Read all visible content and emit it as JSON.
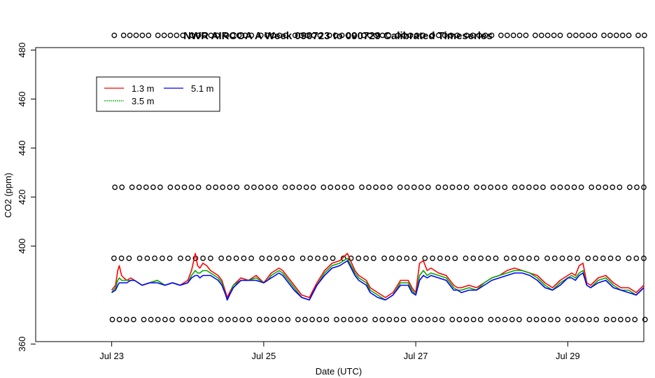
{
  "chart_data": {
    "type": "line",
    "title": "NWR AIRCOA A  Week 090723 to 090729  Calibrated Timeseries",
    "xlabel": "Date (UTC)",
    "ylabel": "CO2 (ppm)",
    "x_unit": "days from Jul 23 00:00 UTC",
    "xlim": [
      -1.0,
      7.0
    ],
    "ylim": [
      361,
      481
    ],
    "x_ticks": [
      {
        "value": 0,
        "label": "Jul 23"
      },
      {
        "value": 2,
        "label": "Jul 25"
      },
      {
        "value": 4,
        "label": "Jul 27"
      },
      {
        "value": 6,
        "label": "Jul 29"
      }
    ],
    "y_ticks": [
      {
        "value": 360,
        "label": "360"
      },
      {
        "value": 400,
        "label": "400"
      },
      {
        "value": 420,
        "label": "420"
      },
      {
        "value": 440,
        "label": "440"
      },
      {
        "value": 460,
        "label": "460"
      },
      {
        "value": 480,
        "label": "480"
      }
    ],
    "grid": false,
    "legend_position": "top-left",
    "legend": [
      {
        "label": "1.3 m",
        "color": "#ff0000"
      },
      {
        "label": "3.5 m",
        "color": "#00aa00"
      },
      {
        "label": "5.1 m",
        "color": "#0000ff"
      }
    ],
    "series": [
      {
        "name": "1.3 m",
        "color": "#ff0000",
        "x": [
          0,
          0.05,
          0.08,
          0.1,
          0.13,
          0.16,
          0.2,
          0.25,
          0.3,
          0.4,
          0.5,
          0.6,
          0.7,
          0.8,
          0.9,
          1.0,
          1.05,
          1.1,
          1.13,
          1.16,
          1.2,
          1.25,
          1.3,
          1.35,
          1.4,
          1.45,
          1.5,
          1.52,
          1.55,
          1.6,
          1.7,
          1.8,
          1.9,
          2.0,
          2.05,
          2.1,
          2.15,
          2.2,
          2.25,
          2.3,
          2.4,
          2.5,
          2.6,
          2.65,
          2.7,
          2.8,
          2.9,
          3.0,
          3.1,
          3.2,
          3.25,
          3.3,
          3.35,
          3.4,
          3.5,
          3.6,
          3.7,
          3.8,
          3.9,
          3.95,
          4.0,
          4.05,
          4.1,
          4.15,
          4.2,
          4.3,
          4.4,
          4.5,
          4.55,
          4.6,
          4.7,
          4.8,
          4.9,
          5.0,
          5.1,
          5.2,
          5.3,
          5.4,
          5.5,
          5.6,
          5.7,
          5.8,
          5.9,
          6.0,
          6.05,
          6.1,
          6.15,
          6.2,
          6.25,
          6.3,
          6.4,
          6.5,
          6.6,
          6.7,
          6.8,
          6.9,
          7.0
        ],
        "y": [
          382,
          384,
          390,
          392,
          388,
          387,
          386,
          387,
          386,
          384,
          385,
          386,
          384,
          385,
          384,
          386,
          390,
          397,
          392,
          391,
          393,
          392,
          390,
          389,
          388,
          386,
          381,
          379,
          381,
          384,
          387,
          386,
          388,
          385,
          387,
          389,
          390,
          391,
          390,
          388,
          384,
          380,
          379,
          382,
          385,
          390,
          393,
          394,
          397,
          390,
          388,
          387,
          386,
          383,
          381,
          379,
          381,
          386,
          386,
          383,
          381,
          393,
          394,
          390,
          391,
          389,
          388,
          384,
          383,
          383,
          384,
          383,
          385,
          387,
          388,
          390,
          391,
          390,
          389,
          388,
          385,
          383,
          386,
          388,
          389,
          388,
          392,
          393,
          385,
          384,
          387,
          388,
          385,
          383,
          383,
          381,
          384
        ]
      },
      {
        "name": "3.5 m",
        "color": "#00aa00",
        "x": [
          0,
          0.05,
          0.08,
          0.1,
          0.13,
          0.16,
          0.2,
          0.25,
          0.3,
          0.4,
          0.5,
          0.6,
          0.7,
          0.8,
          0.9,
          1.0,
          1.05,
          1.1,
          1.13,
          1.16,
          1.2,
          1.25,
          1.3,
          1.35,
          1.4,
          1.45,
          1.5,
          1.52,
          1.55,
          1.6,
          1.7,
          1.8,
          1.9,
          2.0,
          2.05,
          2.1,
          2.15,
          2.2,
          2.25,
          2.3,
          2.4,
          2.5,
          2.6,
          2.65,
          2.7,
          2.8,
          2.9,
          3.0,
          3.1,
          3.2,
          3.25,
          3.3,
          3.35,
          3.4,
          3.5,
          3.6,
          3.7,
          3.8,
          3.9,
          3.95,
          4.0,
          4.05,
          4.1,
          4.15,
          4.2,
          4.3,
          4.4,
          4.5,
          4.55,
          4.6,
          4.7,
          4.8,
          4.9,
          5.0,
          5.1,
          5.2,
          5.3,
          5.4,
          5.5,
          5.6,
          5.7,
          5.8,
          5.9,
          6.0,
          6.05,
          6.1,
          6.15,
          6.2,
          6.25,
          6.3,
          6.4,
          6.5,
          6.6,
          6.7,
          6.8,
          6.9,
          7.0
        ],
        "y": [
          381,
          383,
          386,
          387,
          386,
          386,
          386,
          386,
          386,
          384,
          385,
          386,
          384,
          385,
          384,
          385,
          388,
          390,
          389,
          389,
          390,
          390,
          389,
          388,
          387,
          385,
          380,
          378,
          380,
          384,
          386,
          386,
          387,
          385,
          386,
          388,
          389,
          390,
          389,
          387,
          383,
          379,
          378,
          381,
          384,
          389,
          392,
          393,
          395,
          389,
          387,
          386,
          385,
          382,
          380,
          378,
          380,
          385,
          385,
          382,
          380,
          388,
          390,
          388,
          389,
          388,
          387,
          383,
          382,
          382,
          383,
          382,
          385,
          387,
          388,
          389,
          390,
          390,
          389,
          387,
          384,
          382,
          385,
          387,
          388,
          387,
          389,
          390,
          384,
          383,
          386,
          387,
          384,
          382,
          382,
          380,
          383
        ]
      },
      {
        "name": "5.1 m",
        "color": "#0000ff",
        "x": [
          0,
          0.05,
          0.08,
          0.1,
          0.13,
          0.16,
          0.2,
          0.25,
          0.3,
          0.4,
          0.5,
          0.6,
          0.7,
          0.8,
          0.9,
          1.0,
          1.05,
          1.1,
          1.13,
          1.16,
          1.2,
          1.25,
          1.3,
          1.35,
          1.4,
          1.45,
          1.5,
          1.52,
          1.55,
          1.6,
          1.7,
          1.8,
          1.9,
          2.0,
          2.05,
          2.1,
          2.15,
          2.2,
          2.25,
          2.3,
          2.4,
          2.5,
          2.6,
          2.65,
          2.7,
          2.8,
          2.9,
          3.0,
          3.1,
          3.2,
          3.25,
          3.3,
          3.35,
          3.4,
          3.5,
          3.6,
          3.7,
          3.8,
          3.9,
          3.95,
          4.0,
          4.05,
          4.1,
          4.15,
          4.2,
          4.3,
          4.4,
          4.5,
          4.55,
          4.6,
          4.7,
          4.8,
          4.9,
          5.0,
          5.1,
          5.2,
          5.3,
          5.4,
          5.5,
          5.6,
          5.7,
          5.8,
          5.9,
          6.0,
          6.05,
          6.1,
          6.15,
          6.2,
          6.25,
          6.3,
          6.4,
          6.5,
          6.6,
          6.7,
          6.8,
          6.9,
          7.0
        ],
        "y": [
          381,
          382,
          384,
          385,
          385,
          385,
          385,
          386,
          386,
          384,
          385,
          385,
          384,
          385,
          384,
          385,
          387,
          388,
          388,
          387,
          388,
          388,
          388,
          387,
          386,
          384,
          380,
          378,
          380,
          383,
          386,
          386,
          386,
          385,
          386,
          387,
          388,
          389,
          388,
          386,
          382,
          379,
          378,
          381,
          384,
          388,
          391,
          392,
          394,
          388,
          386,
          385,
          384,
          381,
          379,
          378,
          380,
          384,
          384,
          381,
          380,
          386,
          388,
          387,
          388,
          387,
          386,
          382,
          382,
          381,
          382,
          382,
          384,
          386,
          387,
          388,
          389,
          389,
          388,
          386,
          383,
          382,
          384,
          387,
          387,
          386,
          388,
          389,
          384,
          383,
          385,
          386,
          383,
          382,
          381,
          380,
          383
        ]
      }
    ],
    "marker_rows": [
      {
        "y": 486,
        "x_start": 0.05,
        "x_end": 7.0,
        "count": 78
      },
      {
        "y": 424,
        "x_start": 0.05,
        "x_end": 7.0,
        "count": 70
      },
      {
        "y": 395,
        "x_start": 0.03,
        "x_end": 7.0,
        "count": 66
      },
      {
        "y": 370,
        "x_start": 0.0,
        "x_end": 7.0,
        "count": 70
      }
    ]
  }
}
